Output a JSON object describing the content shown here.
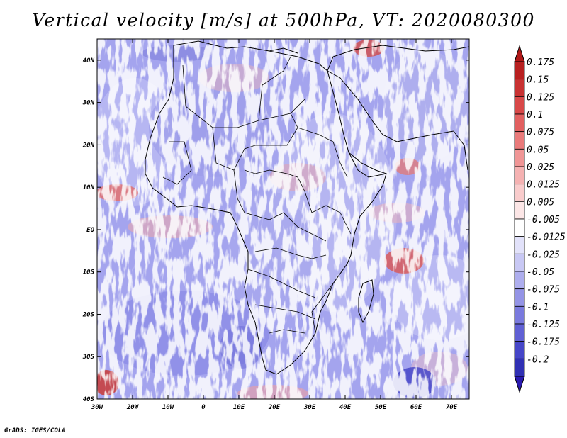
{
  "title": "Vertical velocity [m/s] at 500hPa, VT: 2020080300",
  "credit": "GrADS: IGES/COLA",
  "map": {
    "lon_range": [
      -30,
      75
    ],
    "lat_range": [
      -40,
      45
    ],
    "lon_ticks": [
      "30W",
      "20W",
      "10W",
      "0",
      "10E",
      "20E",
      "30E",
      "40E",
      "50E",
      "60E",
      "70E"
    ],
    "lat_ticks": [
      "40N",
      "30N",
      "20N",
      "10N",
      "EQ",
      "10S",
      "20S",
      "30S",
      "40S"
    ]
  },
  "colorbar": {
    "levels": [
      {
        "label": "0.175",
        "color": "#b82020"
      },
      {
        "label": "0.15",
        "color": "#c83232"
      },
      {
        "label": "0.125",
        "color": "#d84848"
      },
      {
        "label": "0.1",
        "color": "#e26060"
      },
      {
        "label": "0.075",
        "color": "#ea7a7a"
      },
      {
        "label": "0.05",
        "color": "#f09696"
      },
      {
        "label": "0.025",
        "color": "#f5b2b2"
      },
      {
        "label": "0.0125",
        "color": "#f9cccc"
      },
      {
        "label": "0.005",
        "color": "#fce6e6"
      },
      {
        "label": "-0.005",
        "color": "#ffffff"
      },
      {
        "label": "-0.0125",
        "color": "#e2e2fa"
      },
      {
        "label": "-0.025",
        "color": "#c8c8f4"
      },
      {
        "label": "-0.05",
        "color": "#aeaeee"
      },
      {
        "label": "-0.075",
        "color": "#9494e6"
      },
      {
        "label": "-0.1",
        "color": "#7a7ade"
      },
      {
        "label": "-0.125",
        "color": "#6060d4"
      },
      {
        "label": "-0.175",
        "color": "#4646c8"
      },
      {
        "label": "-0.2",
        "color": "#3030b4"
      }
    ],
    "top_arrow_color": "#b01818",
    "bottom_arrow_color": "#2a1ab0"
  }
}
